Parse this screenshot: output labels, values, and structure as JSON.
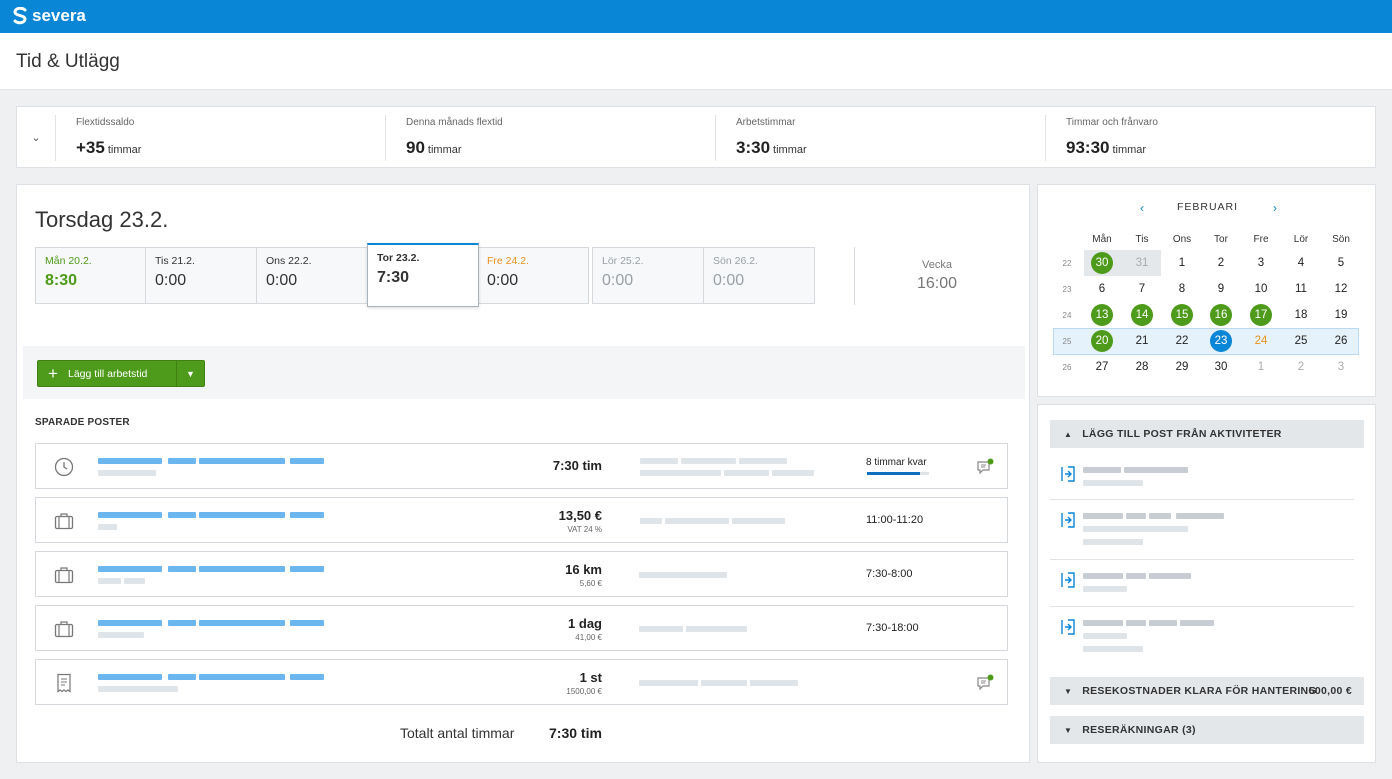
{
  "app": {
    "name": "severa"
  },
  "page": {
    "title": "Tid & Utlägg"
  },
  "stats": [
    {
      "label": "Flextidssaldo",
      "value": "+35",
      "unit": "timmar"
    },
    {
      "label": "Denna månads flextid",
      "value": "90",
      "unit": "timmar"
    },
    {
      "label": "Arbetstimmar",
      "value": "3:30",
      "unit": "timmar"
    },
    {
      "label": "Timmar och frånvaro",
      "value": "93:30",
      "unit": "timmar"
    }
  ],
  "day": {
    "title": "Torsdag 23.2.",
    "days": [
      {
        "name": "Mån 20.2.",
        "hours": "8:30"
      },
      {
        "name": "Tis 21.2.",
        "hours": "0:00"
      },
      {
        "name": "Ons 22.2.",
        "hours": "0:00"
      },
      {
        "name": "Tor 23.2.",
        "hours": "7:30"
      },
      {
        "name": "Fre 24.2.",
        "hours": "0:00"
      },
      {
        "name": "Lör 25.2.",
        "hours": "0:00"
      },
      {
        "name": "Sön 26.2.",
        "hours": "0:00"
      }
    ],
    "week_label": "Vecka",
    "week_total": "16:00"
  },
  "add_button": {
    "label": "Lägg till arbetstid"
  },
  "saved": {
    "heading": "SPARADE POSTER",
    "rows": [
      {
        "icon": "clock-icon",
        "amount": "7:30 tim",
        "sub": "",
        "info": "8 timmar kvar",
        "progress": 0.85,
        "has_comment": true
      },
      {
        "icon": "briefcase-icon",
        "amount": "13,50 €",
        "sub": "VAT 24 %",
        "info": "11:00-11:20",
        "has_comment": false
      },
      {
        "icon": "briefcase-icon",
        "amount": "16 km",
        "sub": "5,60 €",
        "info": "7:30-8:00",
        "has_comment": false
      },
      {
        "icon": "briefcase-icon",
        "amount": "1 dag",
        "sub": "41,00 €",
        "info": "7:30-18:00",
        "has_comment": false
      },
      {
        "icon": "receipt-icon",
        "amount": "1 st",
        "sub": "1500,00 €",
        "info": "",
        "has_comment": true
      }
    ],
    "total_label": "Totalt antal timmar",
    "total_value": "7:30 tim"
  },
  "calendar": {
    "month": "FEBRUARI",
    "weekdays": [
      "Mån",
      "Tis",
      "Ons",
      "Tor",
      "Fre",
      "Lör",
      "Sön"
    ],
    "weeks": [
      {
        "no": "22",
        "days": [
          "30",
          "31",
          "1",
          "2",
          "3",
          "4",
          "5"
        ]
      },
      {
        "no": "23",
        "days": [
          "6",
          "7",
          "8",
          "9",
          "10",
          "11",
          "12"
        ]
      },
      {
        "no": "24",
        "days": [
          "13",
          "14",
          "15",
          "16",
          "17",
          "18",
          "19"
        ]
      },
      {
        "no": "25",
        "days": [
          "20",
          "21",
          "22",
          "23",
          "24",
          "25",
          "26"
        ]
      },
      {
        "no": "26",
        "days": [
          "27",
          "28",
          "29",
          "30",
          "1",
          "2",
          "3"
        ]
      }
    ]
  },
  "side": {
    "activities_header": "LÄGG TILL POST FRÅN AKTIVITETER",
    "travel_header": "RESEKOSTNADER KLARA FÖR HANTERING",
    "travel_amount": "500,00 €",
    "reports_header": "RESERÄKNINGAR (3)"
  },
  "colors": {
    "brand": "#0a86d6",
    "green": "#4e9a1a",
    "orange": "#e8911c",
    "placeholder_blue": "#6bb6ef",
    "placeholder_grey": "#dfe4e9"
  }
}
